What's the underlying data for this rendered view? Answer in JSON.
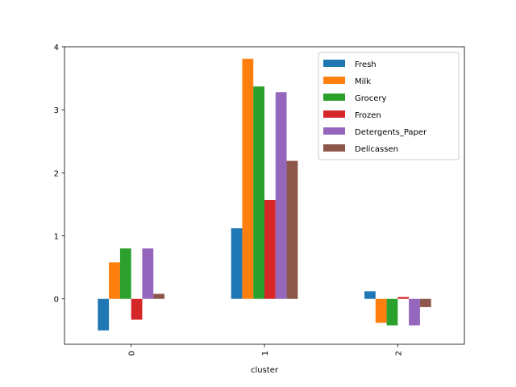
{
  "chart_data": {
    "type": "bar",
    "title": "",
    "xlabel": "cluster",
    "ylabel": "",
    "categories": [
      "0",
      "1",
      "2"
    ],
    "ylim": [
      -0.72,
      4.0
    ],
    "yticks": [
      0,
      1,
      2,
      3,
      4
    ],
    "grid": false,
    "legend_position": "top-right",
    "series": [
      {
        "name": "Fresh",
        "color": "#1f77b4",
        "values": [
          -0.5,
          1.12,
          0.12
        ]
      },
      {
        "name": "Milk",
        "color": "#ff7f0e",
        "values": [
          0.58,
          3.81,
          -0.38
        ]
      },
      {
        "name": "Grocery",
        "color": "#2ca02c",
        "values": [
          0.8,
          3.37,
          -0.42
        ]
      },
      {
        "name": "Frozen",
        "color": "#d62728",
        "values": [
          -0.33,
          1.57,
          0.03
        ]
      },
      {
        "name": "Detergents_Paper",
        "color": "#9467bd",
        "values": [
          0.8,
          3.28,
          -0.42
        ]
      },
      {
        "name": "Delicassen",
        "color": "#8c564b",
        "values": [
          0.08,
          2.19,
          -0.13
        ]
      }
    ]
  }
}
